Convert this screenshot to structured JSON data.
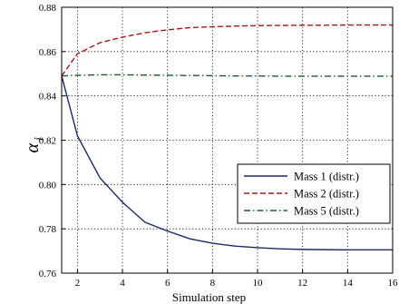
{
  "chart_data": {
    "type": "line",
    "title": "",
    "xlabel": "Simulation step",
    "ylabel": "α",
    "ylabel_subscript": "i",
    "xlim": [
      1.3,
      16
    ],
    "ylim": [
      0.76,
      0.88
    ],
    "xticks": [
      2,
      4,
      6,
      8,
      10,
      12,
      14,
      16
    ],
    "yticks": [
      0.76,
      0.78,
      0.8,
      0.82,
      0.84,
      0.86,
      0.88
    ],
    "ytick_labels": [
      "0.76",
      "0.78",
      "0.80",
      "0.82",
      "0.84",
      "0.86",
      "0.88"
    ],
    "grid": true,
    "legend_position": "center-right",
    "series": [
      {
        "name": "Mass 1 (distr.)",
        "color": "#1f2a6b",
        "style": "solid",
        "x": [
          1.3,
          2,
          3,
          4,
          5,
          6,
          7,
          8,
          9,
          10,
          11,
          12,
          13,
          14,
          15,
          16
        ],
        "y": [
          0.849,
          0.822,
          0.803,
          0.792,
          0.783,
          0.779,
          0.7755,
          0.7735,
          0.7722,
          0.7715,
          0.771,
          0.7707,
          0.7706,
          0.7705,
          0.7705,
          0.7705
        ]
      },
      {
        "name": "Mass 2 (distr.)",
        "color": "#a01b1b",
        "style": "dashed",
        "x": [
          1.3,
          2,
          3,
          4,
          5,
          6,
          7,
          8,
          9,
          10,
          11,
          12,
          13,
          14,
          15,
          16
        ],
        "y": [
          0.849,
          0.859,
          0.864,
          0.8665,
          0.8685,
          0.8698,
          0.8708,
          0.8712,
          0.8715,
          0.8717,
          0.8718,
          0.8719,
          0.8719,
          0.872,
          0.872,
          0.872
        ]
      },
      {
        "name": "Mass 5 (distr.)",
        "color": "#1e5a2e",
        "style": "dashdot",
        "x": [
          1.3,
          2,
          3,
          4,
          5,
          6,
          7,
          8,
          9,
          10,
          11,
          12,
          13,
          14,
          15,
          16
        ],
        "y": [
          0.849,
          0.8493,
          0.8495,
          0.8495,
          0.8494,
          0.8493,
          0.8492,
          0.8491,
          0.849,
          0.849,
          0.8489,
          0.8489,
          0.8489,
          0.8489,
          0.8489,
          0.8489
        ]
      }
    ]
  }
}
